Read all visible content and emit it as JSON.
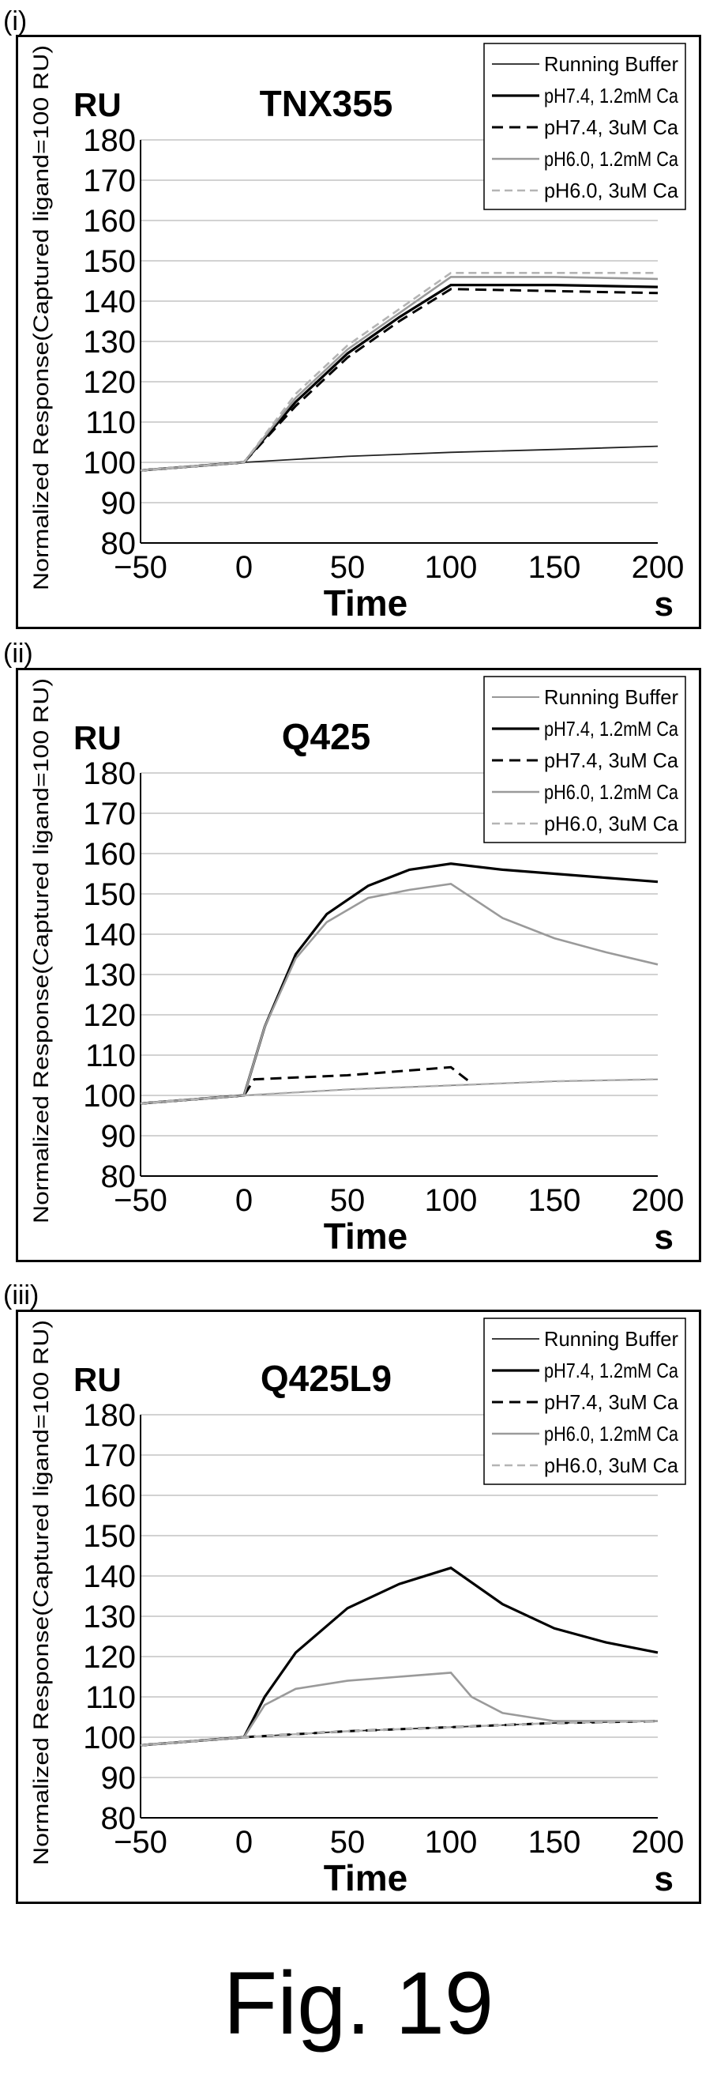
{
  "figure": {
    "caption": "Fig. 19"
  },
  "legend_entries": [
    "Running Buffer",
    "pH7.4, 1.2mM Ca",
    "pH7.4, 3uM Ca",
    "pH6.0, 1.2mM Ca",
    "pH6.0, 3uM Ca"
  ],
  "colors": {
    "running_buffer": "#222222",
    "ph74_high": "#000000",
    "ph74_low": "#000000",
    "ph60_high": "#9a9a9a",
    "ph60_low": "#b4b4b4"
  },
  "chart_data": [
    {
      "panel_label": "(i)",
      "type": "line",
      "title": "TNX355",
      "unit_label": "RU",
      "ylabel": "Normalized Response(Captured ligand=100 RU)",
      "xlabel": "Time",
      "xunit": "s",
      "xlim": [
        -50,
        200
      ],
      "ylim": [
        80,
        180
      ],
      "xticks": [
        -50,
        0,
        50,
        100,
        150,
        200
      ],
      "yticks": [
        80,
        90,
        100,
        110,
        120,
        130,
        140,
        150,
        160,
        170,
        180
      ],
      "grid": true,
      "legend": "top-right",
      "series": [
        {
          "name": "Running Buffer",
          "style": "solid-thin",
          "x": [
            -50,
            0,
            50,
            100,
            150,
            200
          ],
          "y": [
            98,
            100,
            101.5,
            102.5,
            103.2,
            104
          ]
        },
        {
          "name": "pH7.4, 1.2mM Ca",
          "style": "solid",
          "x": [
            -50,
            0,
            25,
            50,
            75,
            100,
            150,
            200
          ],
          "y": [
            98,
            100,
            115,
            127,
            136,
            144,
            144,
            143.5
          ]
        },
        {
          "name": "pH7.4, 3uM Ca",
          "style": "dashed",
          "x": [
            -50,
            0,
            25,
            50,
            75,
            100,
            150,
            200
          ],
          "y": [
            98,
            100,
            114,
            126,
            135,
            143,
            142.5,
            142
          ]
        },
        {
          "name": "pH6.0, 1.2mM Ca",
          "style": "solid-gray",
          "x": [
            -50,
            0,
            25,
            50,
            75,
            100,
            150,
            200
          ],
          "y": [
            98,
            100,
            116,
            128,
            137,
            146,
            146,
            145.5
          ]
        },
        {
          "name": "pH6.0, 3uM Ca",
          "style": "dashed-gray",
          "x": [
            -50,
            0,
            25,
            50,
            75,
            100,
            150,
            200
          ],
          "y": [
            98,
            100,
            117,
            129,
            138,
            147,
            147,
            147
          ]
        }
      ]
    },
    {
      "panel_label": "(ii)",
      "type": "line",
      "title": "Q425",
      "unit_label": "RU",
      "ylabel": "Normalized Response(Captured ligand=100 RU)",
      "xlabel": "Time",
      "xunit": "s",
      "xlim": [
        -50,
        200
      ],
      "ylim": [
        80,
        180
      ],
      "xticks": [
        -50,
        0,
        50,
        100,
        150,
        200
      ],
      "yticks": [
        80,
        90,
        100,
        110,
        120,
        130,
        140,
        150,
        160,
        170,
        180
      ],
      "grid": true,
      "legend": "top-right",
      "series": [
        {
          "name": "Running Buffer",
          "style": "solid-thin-gray",
          "x": [
            -50,
            0,
            50,
            100,
            150,
            200
          ],
          "y": [
            98,
            100,
            101.5,
            102.5,
            103.5,
            104
          ]
        },
        {
          "name": "pH7.4, 1.2mM Ca",
          "style": "solid",
          "x": [
            -50,
            0,
            10,
            25,
            40,
            60,
            80,
            100,
            125,
            150,
            175,
            200
          ],
          "y": [
            98,
            100,
            117,
            135,
            145,
            152,
            156,
            157.5,
            156,
            155,
            154,
            153
          ]
        },
        {
          "name": "pH7.4, 3uM Ca",
          "style": "dashed",
          "x": [
            -50,
            0,
            5,
            50,
            100,
            110
          ],
          "y": [
            98,
            100,
            104,
            105,
            107,
            103
          ]
        },
        {
          "name": "pH6.0, 1.2mM Ca",
          "style": "solid-gray",
          "x": [
            -50,
            0,
            10,
            25,
            40,
            60,
            80,
            100,
            125,
            150,
            175,
            200
          ],
          "y": [
            98,
            100,
            117,
            134,
            143,
            149,
            151,
            152.5,
            144,
            139,
            135.5,
            132.5
          ]
        },
        {
          "name": "pH6.0, 3uM Ca",
          "style": "dashed-gray",
          "x": [
            -50,
            0,
            50,
            100,
            150,
            200
          ],
          "y": [
            98,
            100,
            101.5,
            102.5,
            103.5,
            104
          ]
        }
      ]
    },
    {
      "panel_label": "(iii)",
      "type": "line",
      "title": "Q425L9",
      "unit_label": "RU",
      "ylabel": "Normalized Response(Captured ligand=100 RU)",
      "xlabel": "Time",
      "xunit": "s",
      "xlim": [
        -50,
        200
      ],
      "ylim": [
        80,
        180
      ],
      "xticks": [
        -50,
        0,
        50,
        100,
        150,
        200
      ],
      "yticks": [
        80,
        90,
        100,
        110,
        120,
        130,
        140,
        150,
        160,
        170,
        180
      ],
      "grid": true,
      "legend": "top-right",
      "series": [
        {
          "name": "Running Buffer",
          "style": "solid-thin",
          "x": [
            -50,
            0,
            50,
            100,
            150,
            200
          ],
          "y": [
            98,
            100,
            101.5,
            102.5,
            103.5,
            104
          ]
        },
        {
          "name": "pH7.4, 1.2mM Ca",
          "style": "solid",
          "x": [
            -50,
            0,
            10,
            25,
            50,
            75,
            100,
            125,
            150,
            175,
            200
          ],
          "y": [
            98,
            100,
            110,
            121,
            132,
            138,
            142,
            133,
            127,
            123.5,
            121
          ]
        },
        {
          "name": "pH7.4, 3uM Ca",
          "style": "dashed",
          "x": [
            -50,
            0,
            50,
            100,
            150,
            200
          ],
          "y": [
            98,
            100,
            101.5,
            102.5,
            103.5,
            104
          ]
        },
        {
          "name": "pH6.0, 1.2mM Ca",
          "style": "solid-gray",
          "x": [
            -50,
            0,
            10,
            25,
            50,
            75,
            100,
            110,
            125,
            150,
            200
          ],
          "y": [
            98,
            100,
            108,
            112,
            114,
            115,
            116,
            110,
            106,
            104,
            104
          ]
        },
        {
          "name": "pH6.0, 3uM Ca",
          "style": "dashed-gray",
          "x": [
            -50,
            0,
            50,
            100,
            150,
            200
          ],
          "y": [
            98,
            100,
            101.5,
            102.5,
            103.5,
            104
          ]
        }
      ]
    }
  ]
}
